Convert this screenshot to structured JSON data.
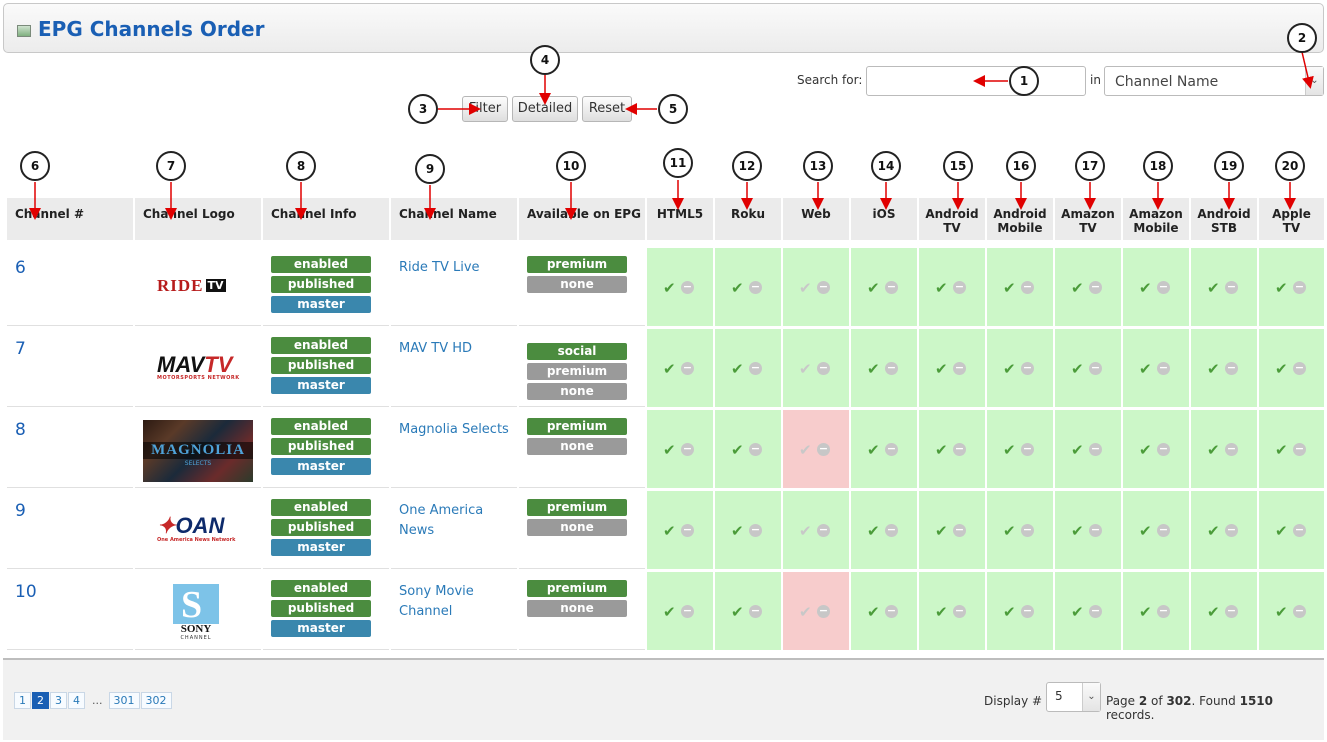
{
  "page": {
    "title": "EPG Channels Order"
  },
  "search": {
    "label": "Search for:",
    "value": "",
    "in_label": "in",
    "field_selected": "Channel Name"
  },
  "buttons": {
    "filter": "Filter",
    "detailed": "Detailed",
    "reset": "Reset"
  },
  "columns": [
    "Channel #",
    "Channel Logo",
    "Channel Info",
    "Channel Name",
    "Available on EPG",
    "HTML5",
    "Roku",
    "Web",
    "iOS",
    "Android\nTV",
    "Android\nMobile",
    "Amazon\nTV",
    "Amazon\nMobile",
    "Android\nSTB",
    "Apple\nTV"
  ],
  "rows": [
    {
      "num": "6",
      "logo": "RIDE TV",
      "info": [
        "enabled",
        "published",
        "master"
      ],
      "name": "Ride TV Live",
      "epg": [
        "premium",
        "none"
      ],
      "web_off": false
    },
    {
      "num": "7",
      "logo": "MAVTV",
      "logo_sub": "MOTORSPORTS NETWORK",
      "info": [
        "enabled",
        "published",
        "master"
      ],
      "name": "MAV TV HD",
      "epg": [
        "social",
        "premium",
        "none"
      ],
      "web_off": false
    },
    {
      "num": "8",
      "logo": "MAGNOLIA",
      "logo_sub": "SELECTS",
      "info": [
        "enabled",
        "published",
        "master"
      ],
      "name": "Magnolia Selects",
      "epg": [
        "premium",
        "none"
      ],
      "web_off": true
    },
    {
      "num": "9",
      "logo": "OAN",
      "logo_sub": "One America News Network",
      "info": [
        "enabled",
        "published",
        "master"
      ],
      "name": "One America News",
      "epg": [
        "premium",
        "none"
      ],
      "web_off": false
    },
    {
      "num": "10",
      "logo": "SONY",
      "logo_sub": "CHANNEL",
      "info": [
        "enabled",
        "published",
        "master"
      ],
      "name": "Sony Movie Channel",
      "epg": [
        "premium",
        "none"
      ],
      "web_off": true
    }
  ],
  "icons": {
    "check": "check-icon",
    "minus": "minus-circle-icon"
  },
  "pagination": {
    "pages": [
      "1",
      "2",
      "3",
      "4",
      "...",
      "301",
      "302"
    ],
    "current": "2",
    "display_label": "Display #",
    "per_page": "5",
    "summary_prefix": "Page ",
    "page_no": "2",
    "of": " of ",
    "total_pages": "302",
    "found": ". Found ",
    "records": "1510",
    "records_suffix": " records."
  },
  "callouts": [
    "1",
    "2",
    "3",
    "4",
    "5",
    "6",
    "7",
    "8",
    "9",
    "10",
    "11",
    "12",
    "13",
    "14",
    "15",
    "16",
    "17",
    "18",
    "19",
    "20"
  ],
  "colors": {
    "title": "#1a5fb4",
    "enabled_row": "#ccf7c8",
    "disabled_row": "#f7cccc",
    "callout_arrow": "#e00000"
  }
}
